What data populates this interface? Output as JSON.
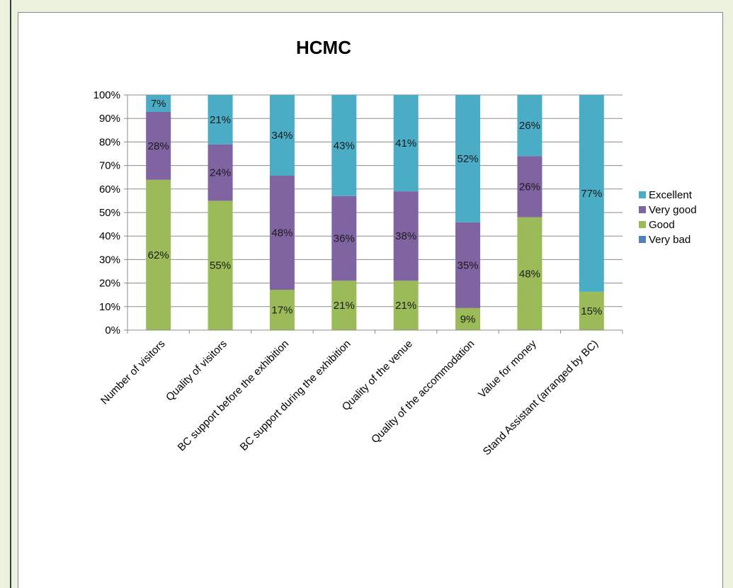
{
  "chart_data": {
    "type": "bar",
    "stacked": true,
    "percent_stacked": true,
    "title": "HCMC",
    "categories": [
      "Number of visitors",
      "Quality of visitors",
      "BC support before the exhibition",
      "BC support during the exhibition",
      "Quality of the venue",
      "Quality of the accommodation",
      "Value for money",
      "Stand Assistant (arranged by BC)"
    ],
    "series": [
      {
        "name": "Very bad",
        "color": "#4f81bd",
        "values": [
          0,
          0,
          0,
          0,
          0,
          0,
          0,
          0
        ],
        "labels": [
          "",
          "",
          "",
          "",
          "",
          "",
          "",
          ""
        ]
      },
      {
        "name": "Good",
        "color": "#9bbb59",
        "values": [
          62,
          55,
          17,
          21,
          21,
          9,
          48,
          15
        ],
        "labels": [
          "62%",
          "55%",
          "17%",
          "21%",
          "21%",
          "9%",
          "48%",
          "15%"
        ]
      },
      {
        "name": "Very good",
        "color": "#8064a2",
        "values": [
          28,
          24,
          48,
          36,
          38,
          35,
          26,
          0
        ],
        "labels": [
          "28%",
          "24%",
          "48%",
          "36%",
          "38%",
          "35%",
          "26%",
          ""
        ]
      },
      {
        "name": "Excellent",
        "color": "#4bacc6",
        "values": [
          7,
          21,
          34,
          43,
          41,
          52,
          26,
          77
        ],
        "labels": [
          "7%",
          "21%",
          "34%",
          "43%",
          "41%",
          "52%",
          "26%",
          "77%"
        ]
      }
    ],
    "legend_order": [
      "Excellent",
      "Very good",
      "Good",
      "Very bad"
    ],
    "legend_position": "right",
    "y_ticks": [
      "0%",
      "10%",
      "20%",
      "30%",
      "40%",
      "50%",
      "60%",
      "70%",
      "80%",
      "90%",
      "100%"
    ],
    "ylim": [
      0,
      100
    ],
    "grid": true,
    "xlabel": "",
    "ylabel": ""
  }
}
